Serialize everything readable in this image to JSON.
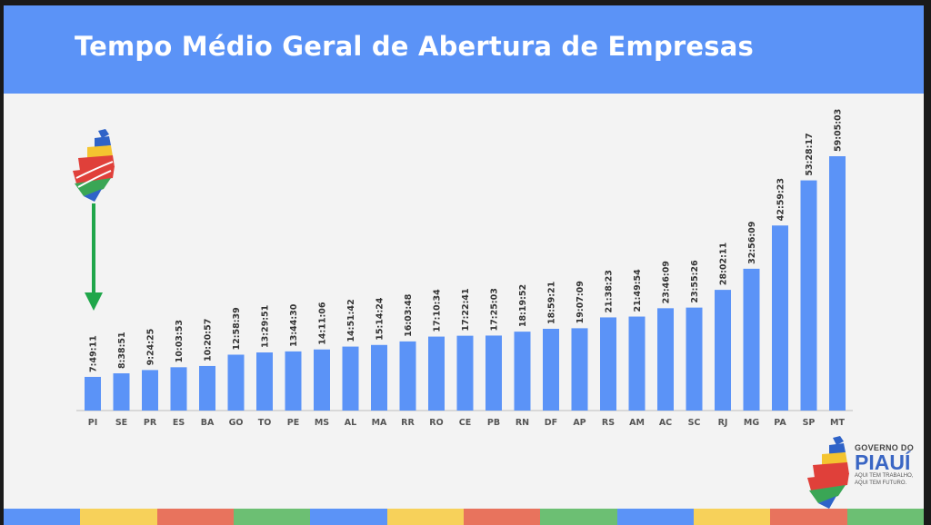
{
  "slide": {
    "title": "Tempo Médio Geral de Abertura de Empresas"
  },
  "branding": {
    "line1": "GOVERNO DO",
    "line2": "PIAUÍ",
    "line3": "AQUI TEM TRABALHO,",
    "line4": "AQUI TEM FUTURO.",
    "icon": "piaui-state-map-logo",
    "colors": [
      "#2f63c8",
      "#f4c430",
      "#e0403a",
      "#3aa655"
    ]
  },
  "arrow": {
    "icon": "down-arrow-icon",
    "color": "#1fa64a"
  },
  "bottom_stripe_colors": [
    "#5b93f7",
    "#f7d15a",
    "#e8735d",
    "#6cbf73",
    "#5b93f7",
    "#f7d15a",
    "#e8735d",
    "#6cbf73",
    "#5b93f7",
    "#f7d15a",
    "#e8735d",
    "#6cbf73"
  ],
  "chart_data": {
    "type": "bar",
    "title": "Tempo Médio Geral de Abertura de Empresas",
    "xlabel": "",
    "ylabel": "",
    "bar_color": "#5b93f7",
    "grid": false,
    "categories": [
      "PI",
      "SE",
      "PR",
      "ES",
      "BA",
      "GO",
      "TO",
      "PE",
      "MS",
      "AL",
      "MA",
      "RR",
      "RO",
      "CE",
      "PB",
      "RN",
      "DF",
      "AP",
      "RS",
      "AM",
      "AC",
      "SC",
      "RJ",
      "MG",
      "PA",
      "SP",
      "MT"
    ],
    "labels": [
      "7:49:11",
      "8:38:51",
      "9:24:25",
      "10:03:53",
      "10:20:57",
      "12:58:39",
      "13:29:51",
      "13:44:30",
      "14:11:06",
      "14:51:42",
      "15:14:24",
      "16:03:48",
      "17:10:34",
      "17:22:41",
      "17:25:03",
      "18:19:52",
      "18:59:21",
      "19:07:09",
      "21:38:23",
      "21:49:54",
      "23:46:09",
      "23:55:26",
      "28:02:11",
      "32:56:09",
      "42:59:23",
      "53:28:17",
      "59:05:03"
    ],
    "values": [
      7.82,
      8.65,
      9.41,
      10.06,
      10.35,
      12.98,
      13.5,
      13.74,
      14.19,
      14.86,
      15.24,
      16.06,
      17.18,
      17.38,
      17.42,
      18.33,
      18.99,
      19.12,
      21.64,
      21.83,
      23.77,
      23.92,
      28.04,
      32.94,
      42.99,
      53.47,
      59.08
    ],
    "ylim": [
      0,
      60
    ]
  }
}
